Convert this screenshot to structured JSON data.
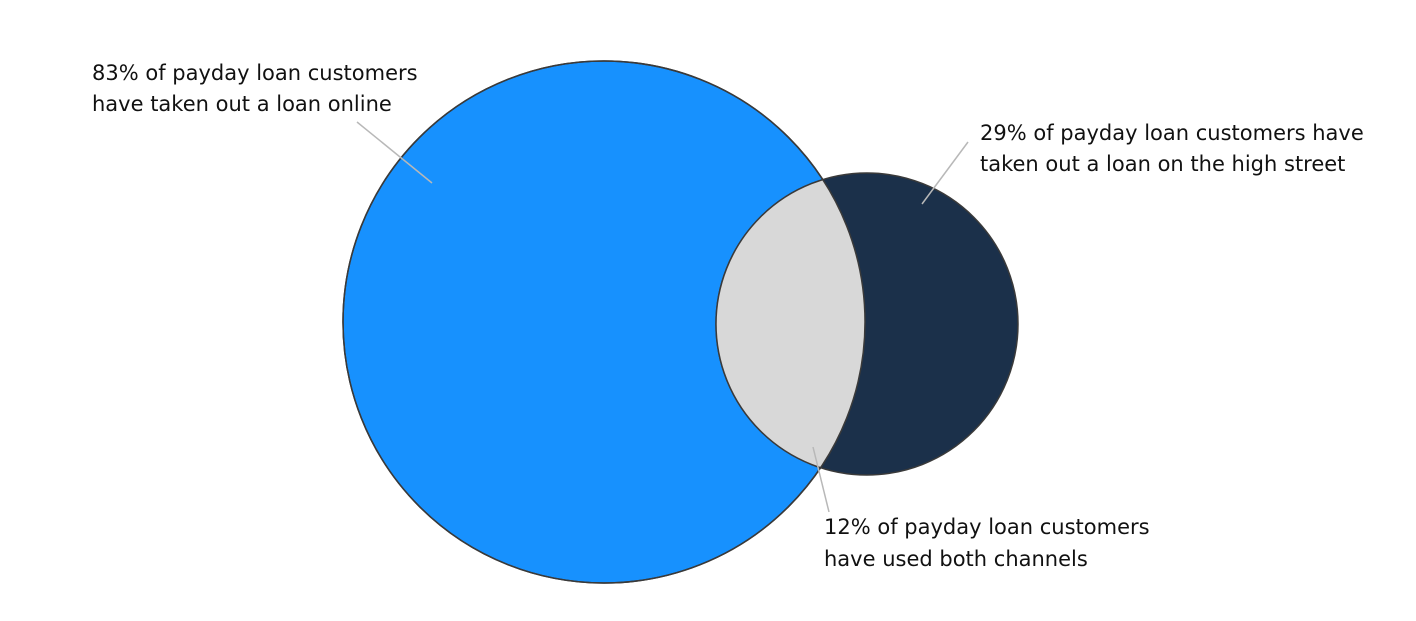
{
  "colors": {
    "online": "#1791fe",
    "high_street": "#1b304a",
    "overlap": "#d8d8d8",
    "outline": "#3a3a3a",
    "leader": "#b8b8b8"
  },
  "sets": {
    "online": {
      "percent": 83,
      "label_lines": [
        "83% of payday loan customers",
        "have taken out a loan online"
      ]
    },
    "high_street": {
      "percent": 29,
      "label_lines": [
        "29% of payday loan customers have",
        "taken out a loan on the high street"
      ]
    },
    "both": {
      "percent": 12,
      "label_lines": [
        "12% of payday loan customers",
        "have used both channels"
      ]
    }
  }
}
